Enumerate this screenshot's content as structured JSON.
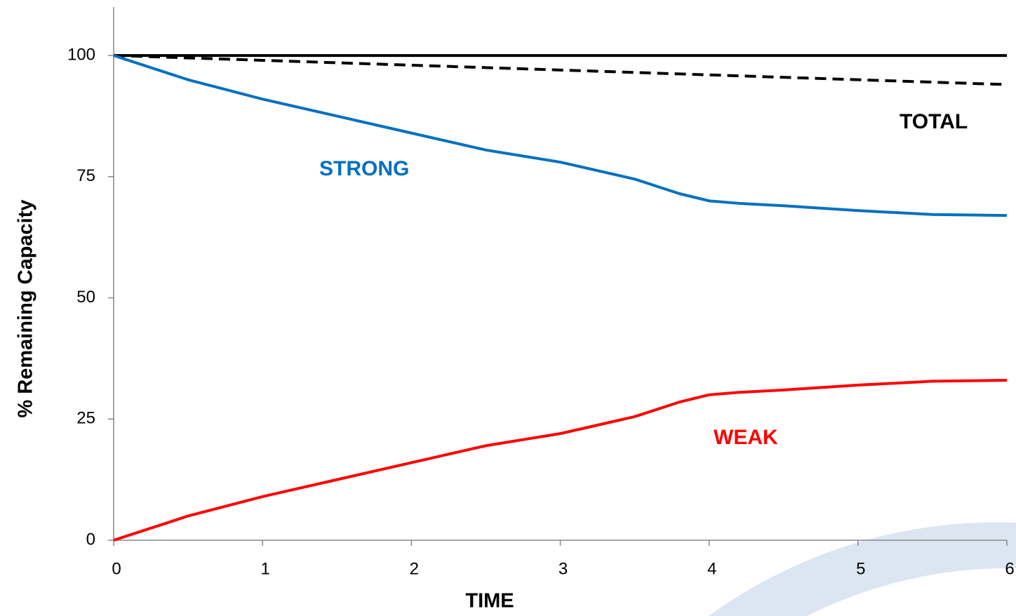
{
  "chart_data": {
    "type": "line",
    "xlabel": "TIME",
    "ylabel": "% Remaining Capacity",
    "xlim": [
      0,
      6
    ],
    "xticks": [
      0,
      1,
      2,
      3,
      4,
      5,
      6
    ],
    "ylim": [
      0,
      110
    ],
    "yticks": [
      0,
      25,
      50,
      75,
      100
    ],
    "series": [
      {
        "color": "#000000",
        "dashed": false,
        "x": [
          0,
          6
        ],
        "values": [
          100,
          100
        ]
      },
      {
        "name": "TOTAL",
        "color": "#000000",
        "dashed": true,
        "x": [
          0,
          1,
          2,
          3,
          4,
          5,
          6
        ],
        "values": [
          100,
          99,
          98,
          97,
          96,
          95,
          94
        ]
      },
      {
        "name": "STRONG",
        "color": "#0070c0",
        "dashed": false,
        "x": [
          0,
          0.5,
          1,
          1.5,
          2,
          2.5,
          3,
          3.5,
          3.8,
          4,
          4.2,
          4.5,
          5,
          5.5,
          6
        ],
        "values": [
          100,
          95,
          91,
          87.5,
          84,
          80.5,
          78,
          74.5,
          71.5,
          70,
          69.5,
          69,
          68,
          67.2,
          67
        ]
      },
      {
        "name": "WEAK",
        "color": "#ff0000",
        "dashed": false,
        "x": [
          0,
          0.5,
          1,
          1.5,
          2,
          2.5,
          3,
          3.5,
          3.8,
          4,
          4.2,
          4.5,
          5,
          5.5,
          6
        ],
        "values": [
          0,
          5,
          9,
          12.5,
          16,
          19.5,
          22,
          25.5,
          28.5,
          30,
          30.5,
          31,
          32,
          32.8,
          33
        ]
      }
    ]
  }
}
